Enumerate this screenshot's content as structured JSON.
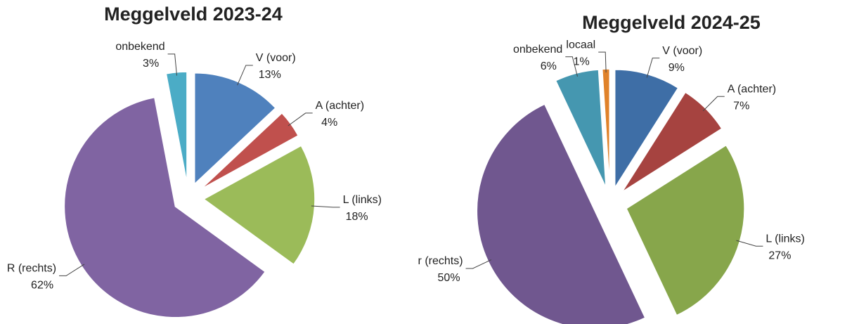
{
  "chart_data": [
    {
      "type": "pie",
      "title": "Meggelveld 2023-24",
      "categories": [
        "V (voor)",
        "A (achter)",
        "L (links)",
        "R (rechts)",
        "onbekend"
      ],
      "values": [
        13,
        4,
        18,
        62,
        3
      ],
      "value_labels": [
        "13%",
        "4%",
        "18%",
        "62%",
        "3%"
      ],
      "colors": [
        "#4f81bd",
        "#c0504d",
        "#9bbb59",
        "#8064a2",
        "#4bacc6"
      ]
    },
    {
      "type": "pie",
      "title": "Meggelveld 2024-25",
      "categories": [
        "V (voor)",
        "A (achter)",
        "L (links)",
        "r (rechts)",
        "onbekend",
        "locaal"
      ],
      "values": [
        9,
        7,
        27,
        50,
        6,
        1
      ],
      "value_labels": [
        "9%",
        "7%",
        "27%",
        "50%",
        "6%",
        "1%"
      ],
      "colors": [
        "#3e6ea6",
        "#a64340",
        "#87a64b",
        "#70578f",
        "#4597b0",
        "#e0822a"
      ]
    }
  ]
}
